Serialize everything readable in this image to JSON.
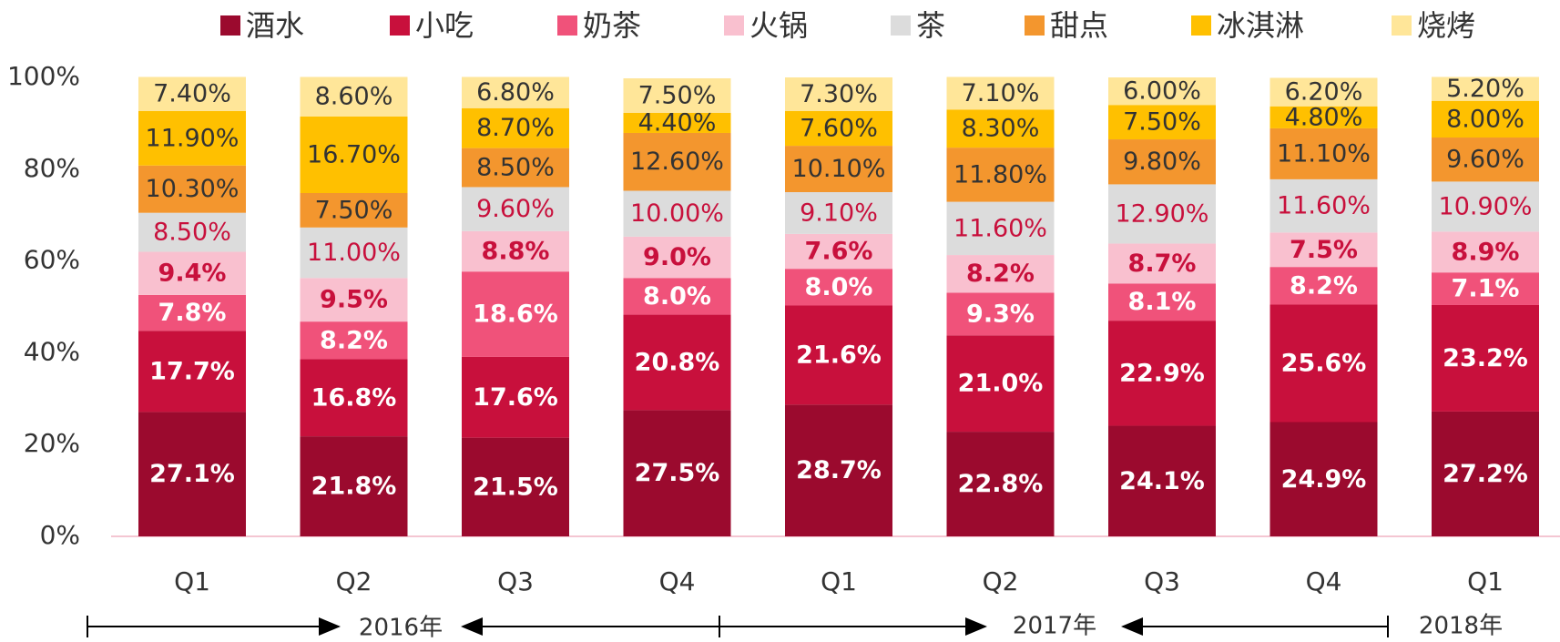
{
  "chart_data": {
    "type": "stacked_bar",
    "categories": [
      "Q1",
      "Q2",
      "Q3",
      "Q4",
      "Q1",
      "Q2",
      "Q3",
      "Q4",
      "Q1"
    ],
    "annotations": [
      "2016年",
      "2017年",
      "2018年"
    ],
    "ylim": [
      0,
      100
    ],
    "yticks": [
      {
        "value": 0,
        "label": "0%"
      },
      {
        "value": 20,
        "label": "20%"
      },
      {
        "value": 40,
        "label": "40%"
      },
      {
        "value": 60,
        "label": "60%"
      },
      {
        "value": 80,
        "label": "80%"
      },
      {
        "value": 100,
        "label": "100%"
      }
    ],
    "series": [
      {
        "name": "酒水",
        "color": "#9b0a2e",
        "label_color": "#ffffff",
        "values": [
          27.1,
          21.8,
          21.5,
          27.5,
          28.7,
          22.8,
          24.1,
          24.9,
          27.2
        ],
        "value_labels": [
          "27.1%",
          "21.8%",
          "21.5%",
          "27.5%",
          "28.7%",
          "22.8%",
          "24.1%",
          "24.9%",
          "27.2%"
        ]
      },
      {
        "name": "小吃",
        "color": "#c8103c",
        "label_color": "#ffffff",
        "values": [
          17.7,
          16.8,
          17.6,
          20.8,
          21.6,
          21.0,
          22.9,
          25.6,
          23.2
        ],
        "value_labels": [
          "17.7%",
          "16.8%",
          "17.6%",
          "20.8%",
          "21.6%",
          "21.0%",
          "22.9%",
          "25.6%",
          "23.2%"
        ]
      },
      {
        "name": "奶茶",
        "color": "#f0527a",
        "label_color": "#ffffff",
        "values": [
          7.8,
          8.2,
          18.6,
          8.0,
          8.0,
          9.3,
          8.1,
          8.2,
          7.1
        ],
        "value_labels": [
          "7.8%",
          "8.2%",
          "18.6%",
          "8.0%",
          "8.0%",
          "9.3%",
          "8.1%",
          "8.2%",
          "7.1%"
        ]
      },
      {
        "name": "火锅",
        "color": "#f9c0cf",
        "label_color": "#c8103c",
        "values": [
          9.4,
          9.5,
          8.8,
          9.0,
          7.6,
          8.2,
          8.7,
          7.5,
          8.9
        ],
        "value_labels": [
          "9.4%",
          "9.5%",
          "8.8%",
          "9.0%",
          "7.6%",
          "8.2%",
          "8.7%",
          "7.5%",
          "8.9%"
        ]
      },
      {
        "name": "茶",
        "color": "#dcdcdc",
        "label_color": "#c8103c",
        "values": [
          8.5,
          11.0,
          9.6,
          10.0,
          9.1,
          11.6,
          12.9,
          11.6,
          10.9
        ],
        "value_labels": [
          "8.50%",
          "11.00%",
          "9.60%",
          "10.00%",
          "9.10%",
          "11.60%",
          "12.90%",
          "11.60%",
          "10.90%"
        ]
      },
      {
        "name": "甜点",
        "color": "#f3962e",
        "label_color": "#333333",
        "values": [
          10.3,
          7.5,
          8.5,
          12.6,
          10.1,
          11.8,
          9.8,
          11.1,
          9.6
        ],
        "value_labels": [
          "10.30%",
          "7.50%",
          "8.50%",
          "12.60%",
          "10.10%",
          "11.80%",
          "9.80%",
          "11.10%",
          "9.60%"
        ]
      },
      {
        "name": "冰淇淋",
        "color": "#ffc000",
        "label_color": "#333333",
        "values": [
          11.9,
          16.7,
          8.7,
          4.4,
          7.6,
          8.3,
          7.5,
          4.8,
          8.0
        ],
        "value_labels": [
          "11.90%",
          "16.70%",
          "8.70%",
          "4.40%",
          "7.60%",
          "8.30%",
          "7.50%",
          "4.80%",
          "8.00%"
        ]
      },
      {
        "name": "烧烤",
        "color": "#ffe699",
        "label_color": "#333333",
        "values": [
          7.4,
          8.6,
          6.8,
          7.5,
          7.3,
          7.1,
          6.0,
          6.2,
          5.2
        ],
        "value_labels": [
          "7.40%",
          "8.60%",
          "6.80%",
          "7.50%",
          "7.30%",
          "7.10%",
          "6.00%",
          "6.20%",
          "5.20%"
        ]
      }
    ]
  }
}
